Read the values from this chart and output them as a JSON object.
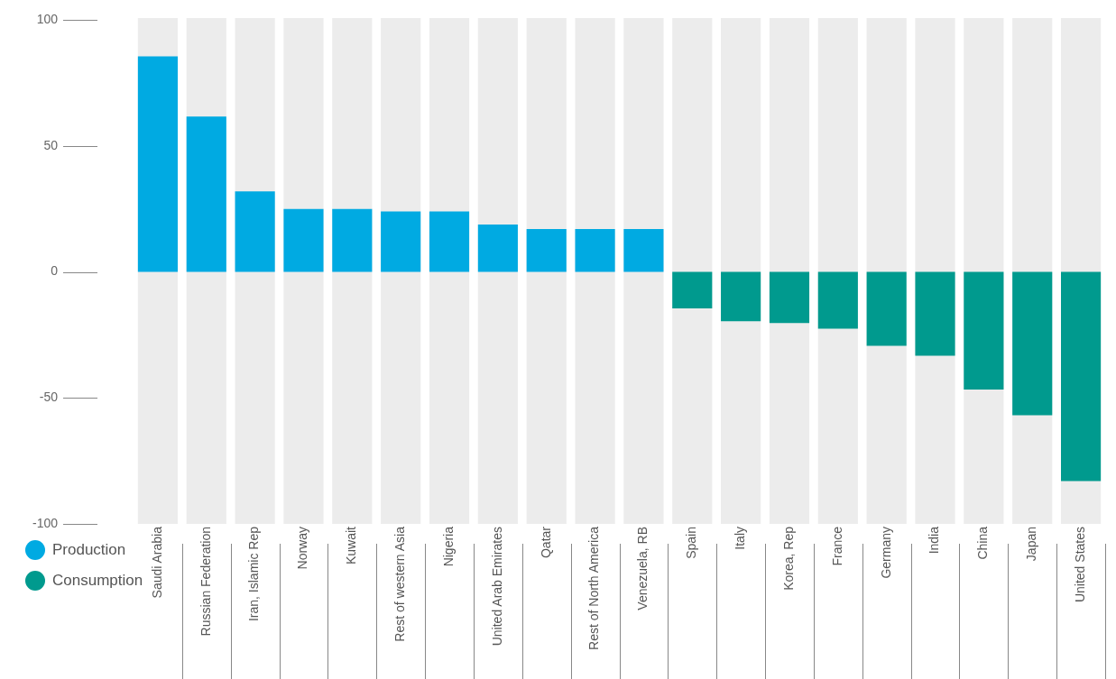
{
  "chart_data": {
    "type": "bar",
    "categories": [
      "Saudi Arabia",
      "Russian Federation",
      "Iran, Islamic Rep",
      "Norway",
      "Kuwait",
      "Rest of western Asia",
      "Nigeria",
      "United Arab Emirates",
      "Qatar",
      "Rest of North America",
      "Venezuela, RB",
      "Spain",
      "Italy",
      "Korea, Rep",
      "France",
      "Germany",
      "India",
      "China",
      "Japan",
      "United States"
    ],
    "series": [
      {
        "name": "Production",
        "color": "#00aae2",
        "values": [
          85.5,
          61.6,
          31.9,
          25,
          25,
          24,
          24,
          18.8,
          17,
          17,
          17,
          null,
          null,
          null,
          null,
          null,
          null,
          null,
          null,
          null
        ]
      },
      {
        "name": "Consumption",
        "color": "#009a8e",
        "values": [
          null,
          null,
          null,
          null,
          null,
          null,
          null,
          null,
          null,
          null,
          null,
          -14.5,
          -19.6,
          -20.3,
          -22.5,
          -29.3,
          -33.3,
          -46.7,
          -56.9,
          -83
        ]
      }
    ],
    "ylim": [
      -100,
      100
    ],
    "yticks": [
      -100,
      -50,
      0,
      50,
      100
    ],
    "grid": false,
    "legend": "bottom left"
  }
}
